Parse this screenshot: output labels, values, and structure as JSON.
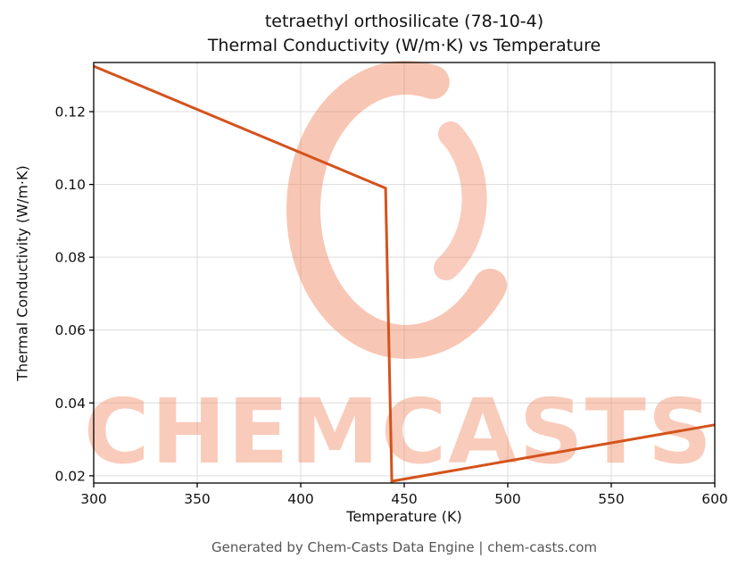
{
  "title": {
    "line1": "tetraethyl orthosilicate (78-10-4)",
    "line2": "Thermal Conductivity (W/m·K) vs Temperature"
  },
  "axes": {
    "xlabel": "Temperature (K)",
    "ylabel": "Thermal Conductivity (W/m·K)"
  },
  "footer": "Generated by Chem-Casts Data Engine | chem-casts.com",
  "watermark": {
    "text": "CHEMCASTS",
    "color": "#f0825c"
  },
  "colors": {
    "line": "#d4531c",
    "grid": "#dcdcdc",
    "axis": "#000000",
    "tick_label": "#111111",
    "footer_text": "#555555"
  },
  "chart_data": {
    "type": "line",
    "title": "tetraethyl orthosilicate (78-10-4) Thermal Conductivity (W/m·K) vs Temperature",
    "xlabel": "Temperature (K)",
    "ylabel": "Thermal Conductivity (W/m·K)",
    "xlim": [
      300,
      600
    ],
    "ylim": [
      0.018,
      0.1335
    ],
    "xticks": [
      300,
      350,
      400,
      450,
      500,
      550,
      600
    ],
    "xtick_labels": [
      "300",
      "350",
      "400",
      "450",
      "500",
      "550",
      "600"
    ],
    "yticks": [
      0.02,
      0.04,
      0.06,
      0.08,
      0.1,
      0.12
    ],
    "ytick_labels": [
      "0.02",
      "0.04",
      "0.06",
      "0.08",
      "0.10",
      "0.12"
    ],
    "grid": true,
    "legend": false,
    "series": [
      {
        "name": "thermal_conductivity",
        "points": [
          [
            300,
            0.1325
          ],
          [
            441,
            0.099
          ],
          [
            444,
            0.0185
          ],
          [
            600,
            0.034
          ]
        ]
      }
    ]
  }
}
